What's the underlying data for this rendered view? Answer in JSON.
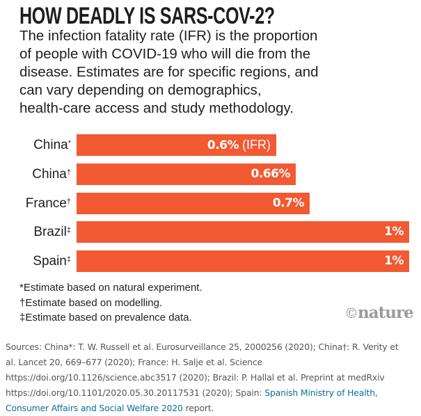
{
  "title": "HOW DEADLY IS SARS-COV-2?",
  "subtitle_lines": [
    "The infection fatality rate (IFR) is the proportion",
    "of people with COVID-19 who will die from the",
    "disease. Estimates are for specific regions, and",
    "can vary depending on demographics,",
    "health-care access and study methodology."
  ],
  "chart_data": {
    "type": "bar",
    "orientation": "horizontal",
    "title": "HOW DEADLY IS SARS-COV-2?",
    "xlabel": "",
    "ylabel": "",
    "xlim": [
      0,
      1
    ],
    "grid": false,
    "categories": [
      "China",
      "China",
      "France",
      "Brazil",
      "Spain"
    ],
    "category_marks": [
      "*",
      "†",
      "†",
      "‡",
      "‡"
    ],
    "values": [
      0.6,
      0.66,
      0.7,
      1,
      1
    ],
    "value_labels": [
      "0.6%",
      "0.66%",
      "0.7%",
      "1%",
      "1%"
    ],
    "value_label_suffix": [
      " (IFR)",
      "",
      "",
      "",
      ""
    ],
    "unit": "%",
    "bar_color": "#f15a32"
  },
  "footnotes": [
    "*Estimate based on natural experiment.",
    "†Estimate based on modelling.",
    "‡Estimate based on prevalence data."
  ],
  "logo": {
    "copyright": "©",
    "text": "nature",
    "color": "#9b9b9b"
  },
  "sources": {
    "line1": "Sources: China*: T. W. Russell et al. Eurosurveillance 25, 2000256 (2020); China†: R. Verity et",
    "line2": "al. Lancet 20, 669–677 (2020); France: H. Salje et al. Science",
    "line3": "https://doi.org/10.1126/science.abc3517 (2020); Brazil: P. Hallal et al. Preprint at medRxiv",
    "line4_text": "https://doi.org/10.1101/2020.05.30.20117531 (2020); Spain: ",
    "line4_link": "Spanish Ministry of Health,",
    "line5_link": "Consumer Affairs and Social Welfare 2020",
    "line5_text": " report.",
    "link_color": "#0b6d9b"
  }
}
